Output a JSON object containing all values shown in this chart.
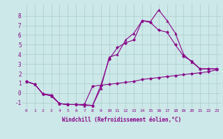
{
  "xlabel": "Windchill (Refroidissement éolien,°C)",
  "background_color": "#cce8e8",
  "line_color": "#880088",
  "xlim": [
    -0.5,
    23.5
  ],
  "ylim": [
    -1.6,
    9.2
  ],
  "yticks": [
    -1,
    0,
    1,
    2,
    3,
    4,
    5,
    6,
    7,
    8
  ],
  "xticks": [
    0,
    1,
    2,
    3,
    4,
    5,
    6,
    7,
    8,
    9,
    10,
    11,
    12,
    13,
    14,
    15,
    16,
    17,
    18,
    19,
    20,
    21,
    22,
    23
  ],
  "line1_x": [
    0,
    1,
    2,
    3,
    4,
    5,
    6,
    7,
    8,
    9,
    10,
    11,
    12,
    13,
    14,
    15,
    16,
    17,
    18,
    19,
    20,
    21,
    22,
    23
  ],
  "line1_y": [
    1.2,
    0.9,
    -0.1,
    -0.2,
    -1.1,
    -1.2,
    -1.2,
    -1.2,
    0.7,
    0.8,
    0.9,
    1.0,
    1.1,
    1.2,
    1.4,
    1.5,
    1.6,
    1.7,
    1.8,
    1.9,
    2.0,
    2.1,
    2.2,
    2.4
  ],
  "line2_x": [
    0,
    1,
    2,
    3,
    4,
    5,
    6,
    7,
    8,
    9,
    10,
    11,
    12,
    13,
    14,
    15,
    16,
    17,
    18,
    19,
    20,
    21,
    22,
    23
  ],
  "line2_y": [
    1.2,
    0.9,
    -0.1,
    -0.3,
    -1.1,
    -1.2,
    -1.2,
    -1.3,
    -1.3,
    0.5,
    3.7,
    4.0,
    5.5,
    6.2,
    7.5,
    7.4,
    8.6,
    7.5,
    6.2,
    4.0,
    3.2,
    2.5,
    2.5,
    2.5
  ],
  "line3_x": [
    0,
    1,
    2,
    3,
    4,
    5,
    6,
    7,
    8,
    9,
    10,
    11,
    12,
    13,
    14,
    15,
    16,
    17,
    18,
    19,
    20,
    21,
    22,
    23
  ],
  "line3_y": [
    1.2,
    0.9,
    -0.1,
    -0.3,
    -1.1,
    -1.2,
    -1.2,
    -1.2,
    -1.3,
    0.8,
    3.5,
    4.7,
    5.2,
    5.5,
    7.5,
    7.3,
    6.5,
    6.3,
    5.0,
    3.8,
    3.3,
    2.5,
    2.5,
    2.5
  ],
  "grid_color": "#aacccc",
  "markersize": 2.5
}
